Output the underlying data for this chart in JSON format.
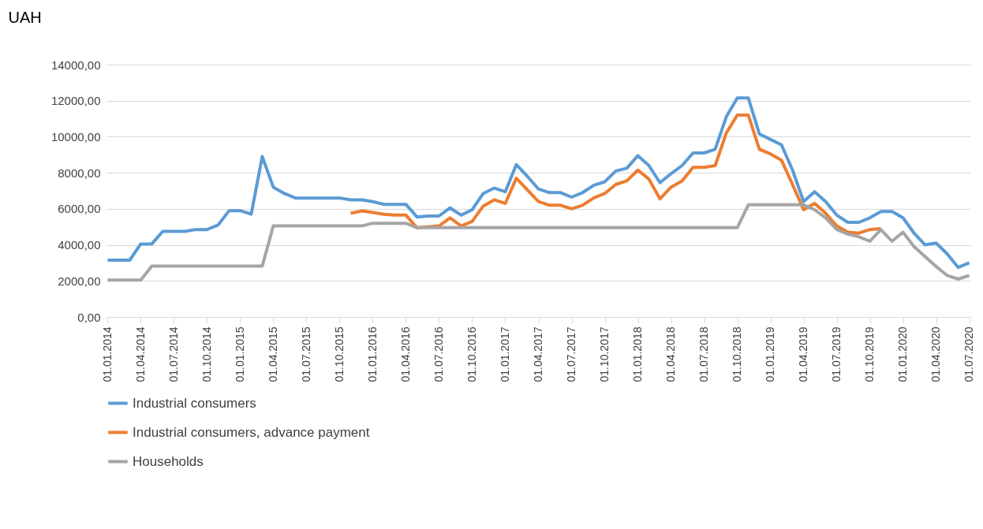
{
  "chart_data": {
    "type": "line",
    "ylabel": "UAH",
    "categories": [
      "01.01.2014",
      null,
      null,
      "01.04.2014",
      null,
      null,
      "01.07.2014",
      null,
      null,
      "01.10.2014",
      null,
      null,
      "01.01.2015",
      null,
      null,
      "01.04.2015",
      null,
      null,
      "01.07.2015",
      null,
      null,
      "01.10.2015",
      null,
      null,
      "01.01.2016",
      null,
      null,
      "01.04.2016",
      null,
      null,
      "01.07.2016",
      null,
      null,
      "01.10.2016",
      null,
      null,
      "01.01.2017",
      null,
      null,
      "01.04.2017",
      null,
      null,
      "01.07.2017",
      null,
      null,
      "01.10.2017",
      null,
      null,
      "01.01.2018",
      null,
      null,
      "01.04.2018",
      null,
      null,
      "01.07.2018",
      null,
      null,
      "01.10.2018",
      null,
      null,
      "01.01.2019",
      null,
      null,
      "01.04.2019",
      null,
      null,
      "01.07.2019",
      null,
      null,
      "01.10.2019",
      null,
      null,
      "01.01.2020",
      null,
      null,
      "01.04.2020",
      null,
      null,
      "01.07.2020"
    ],
    "series": [
      {
        "name": "Industrial consumers",
        "color": "#5b9bd5",
        "values": [
          3150,
          3150,
          3150,
          4050,
          4050,
          4750,
          4750,
          4750,
          4850,
          4850,
          5100,
          5900,
          5900,
          5700,
          8900,
          7200,
          6850,
          6600,
          6600,
          6600,
          6600,
          6600,
          6500,
          6500,
          6400,
          6250,
          6250,
          6250,
          5550,
          5600,
          5600,
          6050,
          5650,
          5950,
          6850,
          7150,
          6950,
          8450,
          7800,
          7100,
          6900,
          6900,
          6650,
          6900,
          7300,
          7500,
          8100,
          8250,
          8950,
          8400,
          7450,
          7950,
          8400,
          9100,
          9100,
          9300,
          11100,
          12150,
          12150,
          10150,
          9850,
          9550,
          8150,
          6400,
          6950,
          6400,
          5650,
          5250,
          5250,
          5500,
          5850,
          5850,
          5500,
          4650,
          4000,
          4100,
          3500,
          2750,
          3000
        ]
      },
      {
        "name": "Industrial consumers, advance payment",
        "color": "#ed7d31",
        "values": [
          null,
          null,
          null,
          null,
          null,
          null,
          null,
          null,
          null,
          null,
          null,
          null,
          null,
          null,
          null,
          null,
          null,
          null,
          null,
          null,
          null,
          null,
          5750,
          5880,
          5800,
          5700,
          5650,
          5650,
          4950,
          5000,
          5050,
          5500,
          5050,
          5300,
          6150,
          6500,
          6300,
          7700,
          7050,
          6400,
          6200,
          6200,
          6000,
          6200,
          6600,
          6850,
          7350,
          7550,
          8150,
          7650,
          6550,
          7200,
          7550,
          8300,
          8300,
          8400,
          10200,
          11200,
          11200,
          9300,
          9050,
          8700,
          7350,
          5950,
          6300,
          5750,
          5050,
          4700,
          4650,
          4850,
          4900,
          null,
          null,
          null,
          null,
          null,
          null,
          null,
          null
        ]
      },
      {
        "name": "Households",
        "color": "#a5a5a5",
        "values": [
          2050,
          2050,
          2050,
          2050,
          2820,
          2820,
          2820,
          2820,
          2820,
          2820,
          2820,
          2820,
          2820,
          2820,
          2820,
          5050,
          5050,
          5050,
          5050,
          5050,
          5050,
          5050,
          5050,
          5050,
          5200,
          5200,
          5200,
          5200,
          4950,
          4950,
          4950,
          4950,
          4950,
          4950,
          4950,
          4950,
          4950,
          4950,
          4950,
          4950,
          4950,
          4950,
          4950,
          4950,
          4950,
          4950,
          4950,
          4950,
          4950,
          4950,
          4950,
          4950,
          4950,
          4950,
          4950,
          4950,
          4950,
          4950,
          6220,
          6220,
          6220,
          6220,
          6220,
          6220,
          5950,
          5500,
          4850,
          4600,
          4450,
          4200,
          4850,
          4200,
          4700,
          3900,
          3350,
          2800,
          2300,
          2100,
          2300
        ]
      }
    ],
    "ylim": [
      0,
      14000
    ],
    "yticks": [
      {
        "value": 0,
        "label": "0,00"
      },
      {
        "value": 2000,
        "label": "2000,00"
      },
      {
        "value": 4000,
        "label": "4000,00"
      },
      {
        "value": 6000,
        "label": "6000,00"
      },
      {
        "value": 8000,
        "label": "8000,00"
      },
      {
        "value": 10000,
        "label": "10000,00"
      },
      {
        "value": 12000,
        "label": "12000,00"
      },
      {
        "value": 14000,
        "label": "14000,00"
      }
    ],
    "grid": "y",
    "legend": "bottom",
    "marker": "none",
    "line_style": "solid"
  }
}
